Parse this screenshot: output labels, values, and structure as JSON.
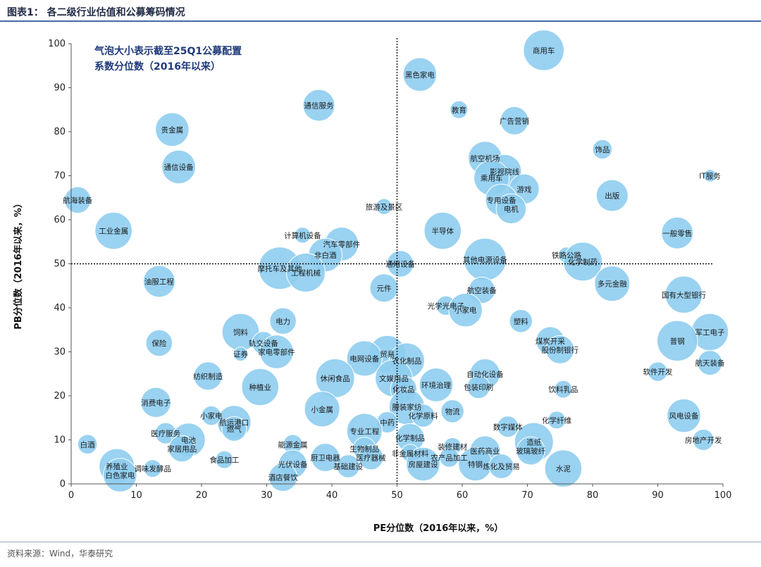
{
  "header": {
    "title": "图表1： 各二级行业估值和公募筹码情况"
  },
  "footer": {
    "source": "资料来源：Wind，华泰研究"
  },
  "chart_data": {
    "type": "scatter",
    "subtype": "bubble",
    "xlabel": "PE分位数（2016年以来，%）",
    "ylabel": "PB分位数（2016年以来，%）",
    "xlim": [
      0,
      100
    ],
    "ylim": [
      0,
      100
    ],
    "xticks": [
      0,
      10,
      20,
      30,
      40,
      50,
      60,
      70,
      80,
      90,
      100
    ],
    "yticks": [
      0,
      10,
      20,
      30,
      40,
      50,
      60,
      70,
      80,
      90,
      100
    ],
    "grid": false,
    "reference_lines": {
      "x": 50,
      "y": 50,
      "style": "dotted"
    },
    "annotation": [
      "气泡大小表示截至25Q1公募配置",
      "系数分位数（2016年以来）"
    ],
    "bubble_color": "#8fcdf0",
    "points": [
      {
        "label": "商用车",
        "x": 72.5,
        "y": 98.5,
        "size": 0.95
      },
      {
        "label": "黑色家电",
        "x": 53.5,
        "y": 93,
        "size": 0.75
      },
      {
        "label": "通信服务",
        "x": 38,
        "y": 86,
        "size": 0.7
      },
      {
        "label": "教育",
        "x": 59.5,
        "y": 85,
        "size": 0.3
      },
      {
        "label": "广告营销",
        "x": 68,
        "y": 82.5,
        "size": 0.6
      },
      {
        "label": "贵金属",
        "x": 15.5,
        "y": 80.5,
        "size": 0.75
      },
      {
        "label": "饰品",
        "x": 81.5,
        "y": 76,
        "size": 0.35
      },
      {
        "label": "航空机场",
        "x": 63.5,
        "y": 74,
        "size": 0.75
      },
      {
        "label": "通信设备",
        "x": 16.5,
        "y": 72,
        "size": 0.75
      },
      {
        "label": "影视院线",
        "x": 66.5,
        "y": 71,
        "size": 0.75
      },
      {
        "label": "IT服务",
        "x": 98,
        "y": 70,
        "size": 0.15
      },
      {
        "label": "乘用车",
        "x": 64.5,
        "y": 69.5,
        "size": 0.8
      },
      {
        "label": "游戏",
        "x": 69.5,
        "y": 67,
        "size": 0.65
      },
      {
        "label": "出版",
        "x": 83,
        "y": 65.5,
        "size": 0.7
      },
      {
        "label": "航海装备",
        "x": 1,
        "y": 64.5,
        "size": 0.55
      },
      {
        "label": "专用设备",
        "x": 66,
        "y": 64.5,
        "size": 0.7
      },
      {
        "label": "电机",
        "x": 67.5,
        "y": 62.5,
        "size": 0.65
      },
      {
        "label": "旅游及景区",
        "x": 48,
        "y": 63,
        "size": 0.25
      },
      {
        "label": "工业金属",
        "x": 6.5,
        "y": 57.5,
        "size": 0.85
      },
      {
        "label": "半导体",
        "x": 57,
        "y": 57.5,
        "size": 0.85
      },
      {
        "label": "一般零售",
        "x": 93,
        "y": 57,
        "size": 0.7
      },
      {
        "label": "计算机设备",
        "x": 35.5,
        "y": 56.5,
        "size": 0.25
      },
      {
        "label": "汽车零部件",
        "x": 41.5,
        "y": 54.5,
        "size": 0.75
      },
      {
        "label": "非白酒",
        "x": 39,
        "y": 52,
        "size": 0.75
      },
      {
        "label": "摩托车及其他",
        "x": 32,
        "y": 49,
        "size": 1.0
      },
      {
        "label": "工程机械",
        "x": 36,
        "y": 48,
        "size": 0.9
      },
      {
        "label": "其他电源设备",
        "x": 63.5,
        "y": 51,
        "size": 1.0
      },
      {
        "label": "铁路公路",
        "x": 76,
        "y": 52,
        "size": 0.25
      },
      {
        "label": "化学制药",
        "x": 78.5,
        "y": 50.5,
        "size": 0.9
      },
      {
        "label": "通用设备",
        "x": 50.5,
        "y": 50,
        "size": 0.55
      },
      {
        "label": "油服工程",
        "x": 13.5,
        "y": 46,
        "size": 0.7
      },
      {
        "label": "多元金融",
        "x": 83,
        "y": 45.5,
        "size": 0.8
      },
      {
        "label": "元件",
        "x": 48,
        "y": 44.5,
        "size": 0.6
      },
      {
        "label": "航空装备",
        "x": 63,
        "y": 44,
        "size": 0.55
      },
      {
        "label": "国有大型银行",
        "x": 94,
        "y": 43,
        "size": 0.85
      },
      {
        "label": "光学光电子",
        "x": 57.5,
        "y": 40.5,
        "size": 0.35
      },
      {
        "label": "小家电",
        "x": 60.5,
        "y": 39.5,
        "size": 0.75
      },
      {
        "label": "电力",
        "x": 32.5,
        "y": 37,
        "size": 0.55
      },
      {
        "label": "塑料",
        "x": 69,
        "y": 37,
        "size": 0.45
      },
      {
        "label": "饲料",
        "x": 26,
        "y": 34.5,
        "size": 0.85
      },
      {
        "label": "军工电子",
        "x": 98,
        "y": 34.5,
        "size": 0.85
      },
      {
        "label": "煤炭开采",
        "x": 73.5,
        "y": 32.5,
        "size": 0.6
      },
      {
        "label": "普钢",
        "x": 93,
        "y": 32.5,
        "size": 0.95
      },
      {
        "label": "保险",
        "x": 13.5,
        "y": 32,
        "size": 0.55
      },
      {
        "label": "轨交设备",
        "x": 29.5,
        "y": 32,
        "size": 0.45
      },
      {
        "label": "股份制银行",
        "x": 75,
        "y": 30.5,
        "size": 0.6
      },
      {
        "label": "家电零部件",
        "x": 31.5,
        "y": 30,
        "size": 0.75
      },
      {
        "label": "贸易",
        "x": 48.5,
        "y": 29.5,
        "size": 0.85
      },
      {
        "label": "证券",
        "x": 26,
        "y": 29.5,
        "size": 0.2
      },
      {
        "label": "电网设备",
        "x": 45,
        "y": 28.5,
        "size": 0.8
      },
      {
        "label": "农化制品",
        "x": 51.5,
        "y": 28,
        "size": 0.8
      },
      {
        "label": "航天装备",
        "x": 98,
        "y": 27.5,
        "size": 0.5
      },
      {
        "label": "软件开发",
        "x": 90,
        "y": 25.5,
        "size": 0.35
      },
      {
        "label": "纺织制造",
        "x": 21,
        "y": 24.5,
        "size": 0.6
      },
      {
        "label": "自动化设备",
        "x": 63.5,
        "y": 25,
        "size": 0.65
      },
      {
        "label": "休闲食品",
        "x": 40.5,
        "y": 24,
        "size": 0.9
      },
      {
        "label": "文娱用品",
        "x": 49.5,
        "y": 24,
        "size": 0.85
      },
      {
        "label": "环境治理",
        "x": 56,
        "y": 22.5,
        "size": 0.75
      },
      {
        "label": "包装印刷",
        "x": 62.5,
        "y": 22,
        "size": 0.45
      },
      {
        "label": "种植业",
        "x": 29,
        "y": 22,
        "size": 0.85
      },
      {
        "label": "饮料乳品",
        "x": 75.5,
        "y": 21.5,
        "size": 0.3
      },
      {
        "label": "化妆品",
        "x": 51,
        "y": 21.5,
        "size": 0.55
      },
      {
        "label": "消费电子",
        "x": 13,
        "y": 18.5,
        "size": 0.65
      },
      {
        "label": "服装家纺",
        "x": 51.5,
        "y": 17.5,
        "size": 0.8
      },
      {
        "label": "小金属",
        "x": 38.5,
        "y": 17,
        "size": 0.8
      },
      {
        "label": "物流",
        "x": 58.5,
        "y": 16.5,
        "size": 0.45
      },
      {
        "label": "化学原料",
        "x": 54,
        "y": 15.5,
        "size": 0.45
      },
      {
        "label": "风电设备",
        "x": 94,
        "y": 15.5,
        "size": 0.75
      },
      {
        "label": "化学纤维",
        "x": 74.5,
        "y": 14.5,
        "size": 0.3
      },
      {
        "label": "航运港口",
        "x": 25,
        "y": 14,
        "size": 0.75
      },
      {
        "label": "中药",
        "x": 48.5,
        "y": 14,
        "size": 0.4
      },
      {
        "label": "小家电",
        "x": 21.5,
        "y": 15.5,
        "size": 0.35
      },
      {
        "label": "数字媒体",
        "x": 67,
        "y": 13,
        "size": 0.4
      },
      {
        "label": "燃气",
        "x": 25,
        "y": 12.5,
        "size": 0.5
      },
      {
        "label": "专业工程",
        "x": 45,
        "y": 12,
        "size": 0.8
      },
      {
        "label": "医疗服务",
        "x": 14.5,
        "y": 11.5,
        "size": 0.4
      },
      {
        "label": "电池",
        "x": 18,
        "y": 10,
        "size": 0.75
      },
      {
        "label": "化学制品",
        "x": 52,
        "y": 10.5,
        "size": 0.6
      },
      {
        "label": "造纸",
        "x": 71,
        "y": 9.5,
        "size": 0.9
      },
      {
        "label": "房地产开发",
        "x": 97,
        "y": 10,
        "size": 0.4
      },
      {
        "label": "白酒",
        "x": 2.5,
        "y": 9,
        "size": 0.35
      },
      {
        "label": "能源金属",
        "x": 34,
        "y": 9,
        "size": 0.35
      },
      {
        "label": "家居用品",
        "x": 17,
        "y": 8,
        "size": 0.55
      },
      {
        "label": "生物制品",
        "x": 45,
        "y": 8,
        "size": 0.45
      },
      {
        "label": "装修建材",
        "x": 58.5,
        "y": 8.5,
        "size": 0.3
      },
      {
        "label": "医药商业",
        "x": 63.5,
        "y": 7.5,
        "size": 0.65
      },
      {
        "label": "玻璃玻纤",
        "x": 70.5,
        "y": 7.5,
        "size": 0.6
      },
      {
        "label": "非金属材料",
        "x": 52,
        "y": 7,
        "size": 0.3
      },
      {
        "label": "农产品加工",
        "x": 58,
        "y": 6,
        "size": 0.35
      },
      {
        "label": "医疗器械",
        "x": 46,
        "y": 6,
        "size": 0.5
      },
      {
        "label": "厨卫电器",
        "x": 39,
        "y": 6,
        "size": 0.6
      },
      {
        "label": "食品加工",
        "x": 23.5,
        "y": 5.5,
        "size": 0.3
      },
      {
        "label": "光伏设备",
        "x": 34,
        "y": 4.5,
        "size": 0.6
      },
      {
        "label": "房屋建设",
        "x": 54,
        "y": 4.5,
        "size": 0.75
      },
      {
        "label": "特钢",
        "x": 62,
        "y": 4.5,
        "size": 0.75
      },
      {
        "label": "炼化及贸易",
        "x": 66,
        "y": 4,
        "size": 0.5
      },
      {
        "label": "基础建设",
        "x": 42.5,
        "y": 4,
        "size": 0.45
      },
      {
        "label": "水泥",
        "x": 75.5,
        "y": 3.5,
        "size": 0.85
      },
      {
        "label": "养殖业",
        "x": 7,
        "y": 4,
        "size": 0.8
      },
      {
        "label": "调味发酵品",
        "x": 12.5,
        "y": 3.5,
        "size": 0.3
      },
      {
        "label": "白色家电",
        "x": 7.5,
        "y": 2,
        "size": 0.75
      },
      {
        "label": "酒店餐饮",
        "x": 32.5,
        "y": 1.5,
        "size": 0.6
      }
    ]
  }
}
